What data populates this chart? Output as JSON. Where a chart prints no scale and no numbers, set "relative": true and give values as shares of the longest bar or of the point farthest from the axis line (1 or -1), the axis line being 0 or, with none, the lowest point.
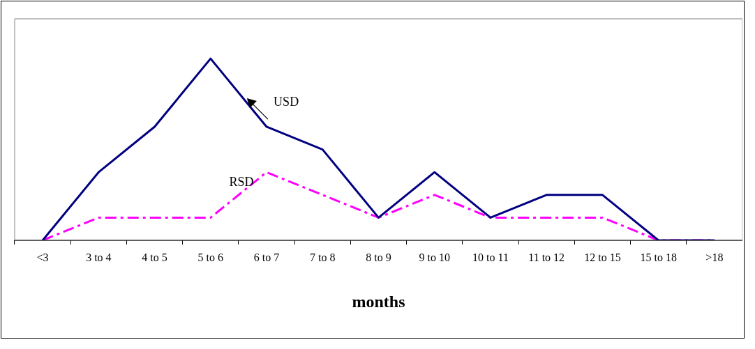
{
  "chart_data": {
    "type": "line",
    "xlabel": "months",
    "relative": true,
    "grid": false,
    "legend": false,
    "marker": "none",
    "categories": [
      "<3",
      "3 to 4",
      "4 to 5",
      "5 to 6",
      "6 to 7",
      "7 to 8",
      "8 to 9",
      "9 to 10",
      "10 to 11",
      "11 to 12",
      "12 to 15",
      "15 to 18",
      ">18"
    ],
    "series": [
      {
        "name": "USD",
        "color": "#000080",
        "line_style": "solid",
        "values": [
          0,
          0.375,
          0.625,
          1,
          0.625,
          0.5,
          0.125,
          0.375,
          0.125,
          0.25,
          0.25,
          0,
          0
        ]
      },
      {
        "name": "RSD",
        "color": "#ff00ff",
        "line_style": "dashed",
        "values": [
          0,
          0.125,
          0.125,
          0.125,
          0.375,
          0.25,
          0.125,
          0.25,
          0.125,
          0.125,
          0.125,
          0,
          0
        ]
      }
    ]
  }
}
